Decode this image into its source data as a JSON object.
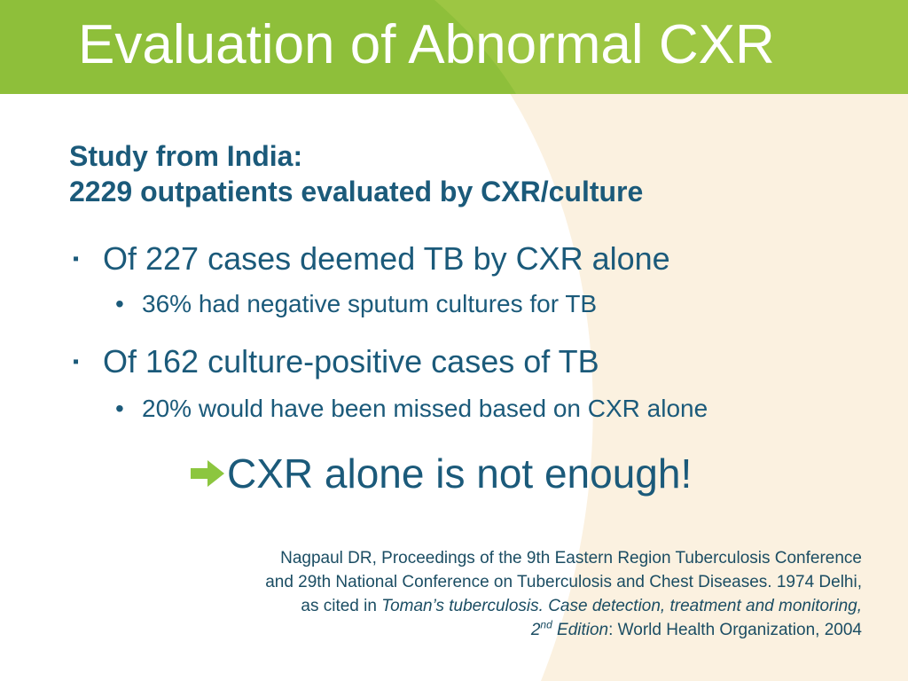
{
  "slide": {
    "title": "Evaluation of Abnormal CXR",
    "subtitle_line1": "Study from India:",
    "subtitle_line2": "2229 outpatients evaluated by CXR/culture",
    "bullets": [
      {
        "text": "Of 227 cases deemed TB by CXR alone",
        "sub": "36% had negative sputum cultures for TB"
      },
      {
        "text": "Of 162 culture-positive cases of TB",
        "sub": "20% would have been missed based on CXR alone"
      }
    ],
    "conclusion": "CXR alone is not enough!",
    "citation": {
      "line1": "Nagpaul DR, Proceedings of the 9th Eastern Region Tuberculosis Conference",
      "line2": "and 29th National Conference on Tuberculosis and Chest Diseases. 1974 Delhi,",
      "line3_prefix": "as cited in ",
      "line3_italic": "Toman’s tuberculosis. Case detection, treatment and monitoring,",
      "line4_num": "2",
      "line4_sup": "nd",
      "line4_italic": " Edition",
      "line4_rest": ": World Health Organization, 2004"
    }
  },
  "colors": {
    "header_green": "#8ebf3a",
    "header_light_green": "#9dc643",
    "cream": "#fbf1e0",
    "text_blue": "#1b5a7a",
    "arrow_green": "#8cc63f"
  },
  "icons": {
    "bullet_marker": "▪",
    "sub_marker": "•",
    "conclusion_icon": "right-arrow-icon"
  }
}
